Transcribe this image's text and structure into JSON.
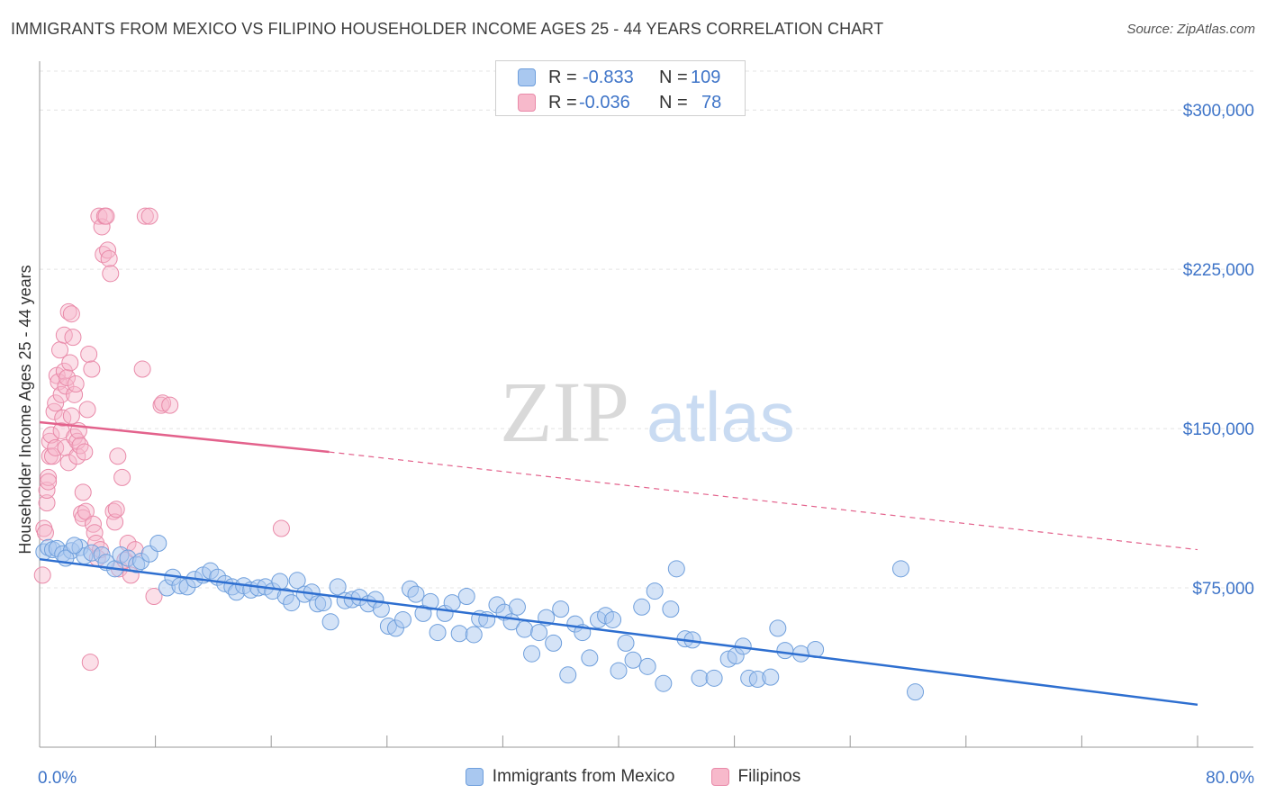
{
  "title": "IMMIGRANTS FROM MEXICO VS FILIPINO HOUSEHOLDER INCOME AGES 25 - 44 YEARS CORRELATION CHART",
  "source": "Source: ZipAtlas.com",
  "watermark": {
    "zip": "ZIP",
    "atlas": "atlas"
  },
  "colors": {
    "mexico_fill": "#a9c8f0",
    "mexico_stroke": "#6f9fdc",
    "mexico_line": "#2e6fd0",
    "filipino_fill": "#f7b9cb",
    "filipino_stroke": "#e98aa9",
    "filipino_line": "#e3628c",
    "axis_label": "#3e74c8"
  },
  "stats": {
    "r_label": "R =",
    "n_label": "N =",
    "rows": [
      {
        "series": "Immigrants from Mexico",
        "r": "-0.833",
        "n": "109"
      },
      {
        "series": "Filipinos",
        "r": "-0.036",
        "n": "78"
      }
    ]
  },
  "legend": [
    "Immigrants from Mexico",
    "Filipinos"
  ],
  "chart_data": {
    "type": "scatter",
    "title": "IMMIGRANTS FROM MEXICO VS FILIPINO HOUSEHOLDER INCOME AGES 25 - 44 YEARS CORRELATION CHART",
    "xlabel": "",
    "ylabel": "Householder Income Ages 25 - 44 years",
    "xlim": [
      0,
      80
    ],
    "ylim": [
      0,
      320000
    ],
    "x_tick_labels": [
      "0.0%",
      "80.0%"
    ],
    "y_ticks": [
      75000,
      150000,
      225000,
      300000
    ],
    "y_tick_labels": [
      "$75,000",
      "$150,000",
      "$225,000",
      "$300,000"
    ],
    "grid": true,
    "legend_position": "bottom",
    "series": [
      {
        "name": "Immigrants from Mexico",
        "trend": {
          "x": [
            0,
            80
          ],
          "y": [
            88500,
            20000
          ],
          "style": "solid"
        },
        "points": [
          [
            0.3,
            92000
          ],
          [
            0.6,
            94000
          ],
          [
            0.9,
            93000
          ],
          [
            1.2,
            93500
          ],
          [
            1.6,
            91000
          ],
          [
            2.2,
            92500
          ],
          [
            2.8,
            94000
          ],
          [
            3.1,
            90000
          ],
          [
            3.6,
            91500
          ],
          [
            4.3,
            90500
          ],
          [
            4.6,
            87000
          ],
          [
            5.2,
            84000
          ],
          [
            5.6,
            90500
          ],
          [
            6.1,
            89000
          ],
          [
            6.7,
            86000
          ],
          [
            7.0,
            87500
          ],
          [
            7.6,
            91000
          ],
          [
            8.2,
            96000
          ],
          [
            8.8,
            75000
          ],
          [
            9.2,
            80000
          ],
          [
            9.7,
            76000
          ],
          [
            10.2,
            75500
          ],
          [
            10.7,
            79000
          ],
          [
            11.3,
            81000
          ],
          [
            11.8,
            83000
          ],
          [
            12.3,
            80000
          ],
          [
            12.8,
            77000
          ],
          [
            13.3,
            75500
          ],
          [
            13.6,
            73000
          ],
          [
            14.1,
            76000
          ],
          [
            14.6,
            74000
          ],
          [
            15.1,
            75000
          ],
          [
            15.6,
            75500
          ],
          [
            16.1,
            73500
          ],
          [
            16.6,
            78000
          ],
          [
            17.0,
            71000
          ],
          [
            17.4,
            68000
          ],
          [
            17.8,
            78500
          ],
          [
            18.3,
            72000
          ],
          [
            18.8,
            73000
          ],
          [
            19.2,
            67500
          ],
          [
            19.6,
            68000
          ],
          [
            20.1,
            59000
          ],
          [
            20.6,
            75500
          ],
          [
            21.1,
            69000
          ],
          [
            21.6,
            69500
          ],
          [
            22.1,
            70500
          ],
          [
            22.7,
            67500
          ],
          [
            23.2,
            69500
          ],
          [
            23.6,
            65000
          ],
          [
            24.1,
            57000
          ],
          [
            24.6,
            56000
          ],
          [
            25.1,
            60000
          ],
          [
            25.6,
            74500
          ],
          [
            26.0,
            72000
          ],
          [
            26.5,
            63000
          ],
          [
            27.0,
            68500
          ],
          [
            27.5,
            54000
          ],
          [
            28.0,
            63000
          ],
          [
            28.5,
            68000
          ],
          [
            29.0,
            53500
          ],
          [
            29.5,
            71000
          ],
          [
            30.0,
            53000
          ],
          [
            30.4,
            60500
          ],
          [
            30.9,
            60000
          ],
          [
            31.6,
            67000
          ],
          [
            32.1,
            63500
          ],
          [
            32.6,
            59000
          ],
          [
            33.0,
            66000
          ],
          [
            33.5,
            55500
          ],
          [
            34.0,
            44000
          ],
          [
            34.5,
            54000
          ],
          [
            35.0,
            61000
          ],
          [
            35.5,
            49000
          ],
          [
            36.0,
            65000
          ],
          [
            36.5,
            34000
          ],
          [
            37.0,
            58000
          ],
          [
            37.5,
            54000
          ],
          [
            38.0,
            42000
          ],
          [
            38.6,
            60000
          ],
          [
            39.1,
            62000
          ],
          [
            39.6,
            60000
          ],
          [
            40.0,
            36000
          ],
          [
            40.5,
            49000
          ],
          [
            41.0,
            41000
          ],
          [
            41.6,
            66000
          ],
          [
            42.0,
            38000
          ],
          [
            42.5,
            73500
          ],
          [
            43.1,
            30000
          ],
          [
            43.6,
            65000
          ],
          [
            44.0,
            84000
          ],
          [
            44.6,
            51000
          ],
          [
            45.1,
            50500
          ],
          [
            45.6,
            32500
          ],
          [
            46.6,
            32500
          ],
          [
            47.6,
            41500
          ],
          [
            48.1,
            43000
          ],
          [
            48.6,
            47500
          ],
          [
            49.0,
            32500
          ],
          [
            49.6,
            32000
          ],
          [
            50.5,
            33000
          ],
          [
            51.0,
            56000
          ],
          [
            51.5,
            45500
          ],
          [
            52.6,
            44000
          ],
          [
            53.6,
            46000
          ],
          [
            59.5,
            84000
          ],
          [
            60.5,
            26000
          ],
          [
            1.8,
            89000
          ],
          [
            2.4,
            95000
          ]
        ]
      },
      {
        "name": "Filipinos",
        "trend": {
          "x": [
            0,
            20
          ],
          "y": [
            153000,
            139000
          ],
          "style": "solid",
          "extension": {
            "x": [
              20,
              80
            ],
            "y": [
              139000,
              93000
            ],
            "style": "dashed"
          }
        },
        "points": [
          [
            0.2,
            81000
          ],
          [
            0.3,
            103000
          ],
          [
            0.4,
            101000
          ],
          [
            0.5,
            115000
          ],
          [
            0.5,
            121000
          ],
          [
            0.6,
            127000
          ],
          [
            0.6,
            125000
          ],
          [
            0.7,
            137000
          ],
          [
            0.7,
            144000
          ],
          [
            0.8,
            147000
          ],
          [
            0.9,
            137000
          ],
          [
            1.0,
            158000
          ],
          [
            1.1,
            141000
          ],
          [
            1.1,
            162000
          ],
          [
            1.2,
            175000
          ],
          [
            1.3,
            172000
          ],
          [
            1.4,
            187000
          ],
          [
            1.5,
            166000
          ],
          [
            1.5,
            149000
          ],
          [
            1.6,
            155000
          ],
          [
            1.7,
            194000
          ],
          [
            1.7,
            177000
          ],
          [
            1.8,
            170000
          ],
          [
            1.8,
            141000
          ],
          [
            1.9,
            174000
          ],
          [
            2.0,
            205000
          ],
          [
            2.0,
            134000
          ],
          [
            2.1,
            181000
          ],
          [
            2.2,
            204000
          ],
          [
            2.2,
            156000
          ],
          [
            2.3,
            193000
          ],
          [
            2.4,
            146000
          ],
          [
            2.4,
            166000
          ],
          [
            2.5,
            171000
          ],
          [
            2.6,
            137000
          ],
          [
            2.6,
            144000
          ],
          [
            2.7,
            149000
          ],
          [
            2.8,
            142000
          ],
          [
            2.9,
            110000
          ],
          [
            3.0,
            120000
          ],
          [
            3.0,
            108000
          ],
          [
            3.1,
            139000
          ],
          [
            3.2,
            111000
          ],
          [
            3.3,
            159000
          ],
          [
            3.4,
            185000
          ],
          [
            3.6,
            178000
          ],
          [
            3.7,
            105000
          ],
          [
            3.8,
            101000
          ],
          [
            3.9,
            96000
          ],
          [
            4.0,
            89000
          ],
          [
            4.1,
            250000
          ],
          [
            4.2,
            93000
          ],
          [
            4.3,
            245000
          ],
          [
            4.4,
            232000
          ],
          [
            4.5,
            250000
          ],
          [
            4.6,
            250000
          ],
          [
            4.7,
            234000
          ],
          [
            4.8,
            230000
          ],
          [
            4.9,
            223000
          ],
          [
            5.1,
            111000
          ],
          [
            5.2,
            106000
          ],
          [
            5.3,
            112000
          ],
          [
            5.4,
            137000
          ],
          [
            5.5,
            84000
          ],
          [
            5.7,
            127000
          ],
          [
            5.9,
            88000
          ],
          [
            6.1,
            96000
          ],
          [
            6.3,
            81000
          ],
          [
            6.6,
            93000
          ],
          [
            7.1,
            178000
          ],
          [
            7.3,
            250000
          ],
          [
            7.6,
            250000
          ],
          [
            7.9,
            71000
          ],
          [
            8.4,
            161000
          ],
          [
            8.5,
            162000
          ],
          [
            9.0,
            161000
          ],
          [
            16.7,
            103000
          ],
          [
            3.5,
            40000
          ]
        ]
      }
    ]
  }
}
